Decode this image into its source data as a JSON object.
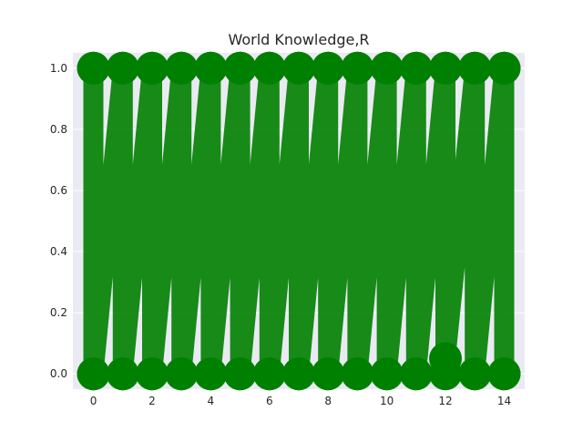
{
  "chart_data": {
    "type": "line",
    "title": "World Knowledge,R",
    "xlabel": "",
    "ylabel": "",
    "xlim": [
      -0.7,
      14.7
    ],
    "ylim": [
      -0.05,
      1.05
    ],
    "xticks": [
      0,
      2,
      4,
      6,
      8,
      10,
      12,
      14
    ],
    "yticks": [
      0.0,
      0.2,
      0.4,
      0.6,
      0.8,
      1.0
    ],
    "grid": true,
    "style": "seaborn-darkgrid",
    "marker": "o",
    "colors": {
      "line": "#008000",
      "plot_background": "#eaeaf2",
      "grid": "#ffffff"
    },
    "series": [
      {
        "x": [
          0,
          0,
          0,
          0,
          1,
          1,
          1,
          1,
          2,
          2,
          2,
          2,
          3,
          3,
          3,
          3,
          4,
          4,
          4,
          4,
          5,
          5,
          5,
          5,
          6,
          6,
          6,
          6,
          7,
          7,
          7,
          7,
          8,
          8,
          8,
          8,
          9,
          9,
          9,
          9,
          10,
          10,
          10,
          10,
          11,
          11,
          11,
          11,
          12,
          12,
          12,
          12,
          13,
          13,
          13,
          13,
          14,
          14,
          14,
          14
        ],
        "y": [
          1.0,
          0.0,
          1.0,
          0.0,
          1.0,
          0.0,
          1.0,
          0.0,
          1.0,
          0.0,
          1.0,
          0.0,
          1.0,
          0.0,
          1.0,
          0.0,
          1.0,
          0.0,
          1.0,
          0.0,
          1.0,
          0.0,
          1.0,
          0.0,
          1.0,
          0.0,
          1.0,
          0.0,
          1.0,
          0.0,
          1.0,
          0.0,
          1.0,
          0.0,
          1.0,
          0.0,
          1.0,
          0.0,
          1.0,
          0.0,
          1.0,
          0.0,
          1.0,
          0.0,
          1.0,
          0.0,
          1.0,
          0.0,
          1.0,
          0.0,
          1.0,
          0.05,
          1.0,
          0.0,
          1.0,
          0.0,
          1.0,
          0.0,
          1.0,
          0.0
        ]
      }
    ]
  }
}
